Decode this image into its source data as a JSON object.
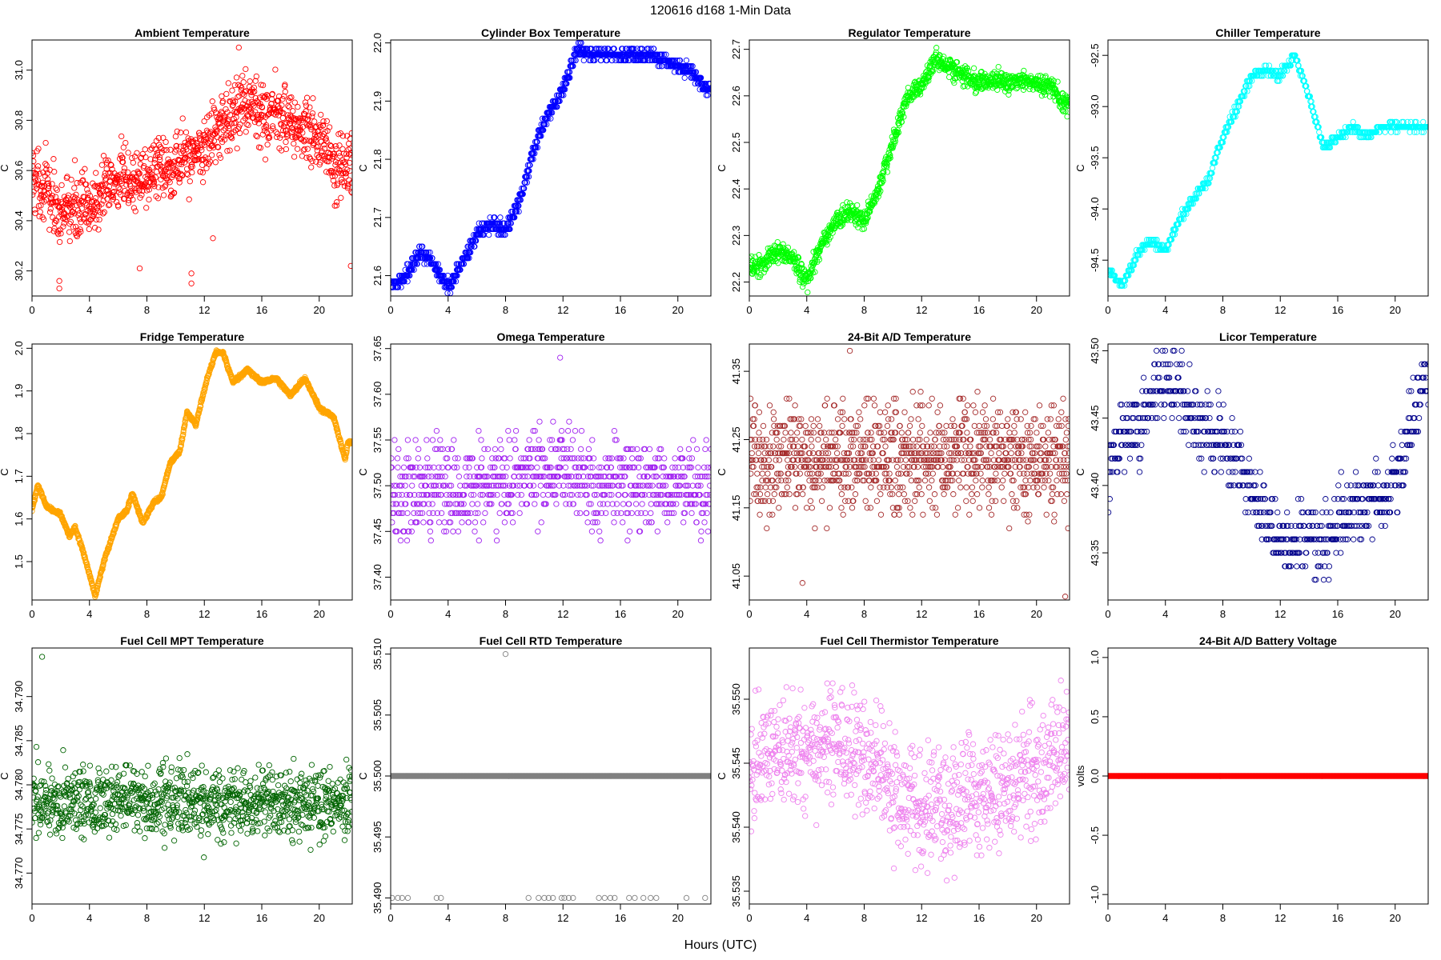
{
  "figure": {
    "title": "120616   d168   1-Min Data",
    "xlabel": "Hours (UTC)"
  },
  "chart_data": [
    {
      "type": "scatter",
      "title": "Ambient Temperature",
      "ylabel": "C",
      "color": "#ff0000",
      "xlim": [
        0,
        22.3
      ],
      "ylim": [
        30.1,
        31.12
      ],
      "xticks": [
        0,
        4,
        8,
        12,
        16,
        20
      ],
      "yticks": [
        30.2,
        30.4,
        30.6,
        30.8,
        31.0
      ],
      "yticklabels": [
        "30.2",
        "30.4",
        "30.6",
        "30.8",
        "31.0"
      ],
      "trend": [
        [
          0,
          30.58
        ],
        [
          1,
          30.52
        ],
        [
          2,
          30.42
        ],
        [
          3,
          30.46
        ],
        [
          4,
          30.45
        ],
        [
          5,
          30.52
        ],
        [
          6,
          30.56
        ],
        [
          7,
          30.55
        ],
        [
          8,
          30.58
        ],
        [
          9,
          30.62
        ],
        [
          10,
          30.63
        ],
        [
          11,
          30.66
        ],
        [
          12,
          30.7
        ],
        [
          13,
          30.76
        ],
        [
          14,
          30.82
        ],
        [
          15,
          30.86
        ],
        [
          16,
          30.83
        ],
        [
          17,
          30.82
        ],
        [
          18,
          30.8
        ],
        [
          19,
          30.75
        ],
        [
          20,
          30.72
        ],
        [
          21,
          30.62
        ],
        [
          22,
          30.6
        ]
      ],
      "noise": 0.09,
      "quant": 0,
      "n": 1100,
      "outliers": [
        [
          1.9,
          30.13
        ],
        [
          1.9,
          30.16
        ],
        [
          14.4,
          31.09
        ],
        [
          11.1,
          30.15
        ],
        [
          11.1,
          30.19
        ],
        [
          22.2,
          30.22
        ],
        [
          7.5,
          30.21
        ],
        [
          12.6,
          30.33
        ]
      ]
    },
    {
      "type": "scatter",
      "title": "Cylinder Box Temperature",
      "ylabel": "C",
      "color": "#0000ff",
      "xlim": [
        0,
        22.3
      ],
      "ylim": [
        21.565,
        22.005
      ],
      "xticks": [
        0,
        4,
        8,
        12,
        16,
        20
      ],
      "yticks": [
        21.6,
        21.7,
        21.8,
        21.9,
        22.0
      ],
      "yticklabels": [
        "21.6",
        "21.7",
        "21.8",
        "21.9",
        "22.0"
      ],
      "trend": [
        [
          0,
          21.58
        ],
        [
          1,
          21.6
        ],
        [
          2,
          21.64
        ],
        [
          3,
          21.62
        ],
        [
          4,
          21.58
        ],
        [
          5,
          21.62
        ],
        [
          6,
          21.67
        ],
        [
          7,
          21.69
        ],
        [
          8,
          21.68
        ],
        [
          9,
          21.73
        ],
        [
          10,
          21.82
        ],
        [
          11,
          21.88
        ],
        [
          12,
          21.92
        ],
        [
          13,
          21.99
        ],
        [
          14,
          21.98
        ],
        [
          16,
          21.98
        ],
        [
          18,
          21.98
        ],
        [
          19,
          21.97
        ],
        [
          20,
          21.96
        ],
        [
          21,
          21.95
        ],
        [
          22,
          21.92
        ]
      ],
      "noise": 0.008,
      "quant": 0.01,
      "n": 1100,
      "outliers": []
    },
    {
      "type": "scatter",
      "title": "Regulator Temperature",
      "ylabel": "C",
      "color": "#00ff00",
      "xlim": [
        0,
        22.3
      ],
      "ylim": [
        22.17,
        22.72
      ],
      "xticks": [
        0,
        4,
        8,
        12,
        16,
        20
      ],
      "yticks": [
        22.2,
        22.3,
        22.4,
        22.5,
        22.6,
        22.7
      ],
      "yticklabels": [
        "22.2",
        "22.3",
        "22.4",
        "22.5",
        "22.6",
        "22.7"
      ],
      "trend": [
        [
          0,
          22.23
        ],
        [
          1,
          22.24
        ],
        [
          2,
          22.27
        ],
        [
          3,
          22.25
        ],
        [
          4,
          22.2
        ],
        [
          5,
          22.28
        ],
        [
          6,
          22.33
        ],
        [
          7,
          22.35
        ],
        [
          8,
          22.33
        ],
        [
          9,
          22.4
        ],
        [
          10,
          22.5
        ],
        [
          11,
          22.6
        ],
        [
          12,
          22.62
        ],
        [
          13,
          22.68
        ],
        [
          14,
          22.66
        ],
        [
          15,
          22.64
        ],
        [
          16,
          22.63
        ],
        [
          18,
          22.63
        ],
        [
          20,
          22.63
        ],
        [
          21,
          22.62
        ],
        [
          22,
          22.58
        ]
      ],
      "noise": 0.015,
      "quant": 0,
      "n": 1100,
      "outliers": []
    },
    {
      "type": "scatter",
      "title": "Chiller Temperature",
      "ylabel": "C",
      "color": "#00ffff",
      "xlim": [
        0,
        22.3
      ],
      "ylim": [
        -94.85,
        -92.35
      ],
      "xticks": [
        0,
        4,
        8,
        12,
        16,
        20
      ],
      "yticks": [
        -94.5,
        -94.0,
        -93.5,
        -93.0,
        -92.5
      ],
      "yticklabels": [
        "-94.5",
        "-94.0",
        "-93.5",
        "-93.0",
        "-92.5"
      ],
      "trend": [
        [
          0,
          -94.6
        ],
        [
          1,
          -94.75
        ],
        [
          2,
          -94.45
        ],
        [
          3,
          -94.3
        ],
        [
          4,
          -94.4
        ],
        [
          5,
          -94.1
        ],
        [
          6,
          -93.9
        ],
        [
          7,
          -93.7
        ],
        [
          8,
          -93.3
        ],
        [
          9,
          -93.0
        ],
        [
          10,
          -92.7
        ],
        [
          11,
          -92.65
        ],
        [
          12,
          -92.7
        ],
        [
          13,
          -92.5
        ],
        [
          14,
          -92.9
        ],
        [
          15,
          -93.4
        ],
        [
          16,
          -93.3
        ],
        [
          17,
          -93.2
        ],
        [
          18,
          -93.3
        ],
        [
          19,
          -93.2
        ],
        [
          20,
          -93.2
        ],
        [
          22,
          -93.2
        ]
      ],
      "noise": 0.03,
      "quant": 0.05,
      "n": 700,
      "outliers": []
    },
    {
      "type": "scatter",
      "title": "Fridge Temperature",
      "ylabel": "C",
      "color": "#ffa500",
      "xlim": [
        0,
        22.3
      ],
      "ylim": [
        1.41,
        2.01
      ],
      "xticks": [
        0,
        4,
        8,
        12,
        16,
        20
      ],
      "yticks": [
        1.5,
        1.6,
        1.7,
        1.8,
        1.9,
        2.0
      ],
      "yticklabels": [
        "1.5",
        "1.6",
        "1.7",
        "1.8",
        "1.9",
        "2.0"
      ],
      "trend": [
        [
          0,
          1.62
        ],
        [
          0.4,
          1.68
        ],
        [
          1,
          1.63
        ],
        [
          2,
          1.61
        ],
        [
          2.6,
          1.56
        ],
        [
          3,
          1.58
        ],
        [
          3.5,
          1.53
        ],
        [
          4,
          1.47
        ],
        [
          4.4,
          1.42
        ],
        [
          5,
          1.5
        ],
        [
          6,
          1.6
        ],
        [
          6.6,
          1.62
        ],
        [
          7,
          1.66
        ],
        [
          7.7,
          1.59
        ],
        [
          8.5,
          1.64
        ],
        [
          9,
          1.65
        ],
        [
          9.6,
          1.73
        ],
        [
          10.3,
          1.76
        ],
        [
          10.8,
          1.85
        ],
        [
          11.4,
          1.82
        ],
        [
          12.2,
          1.93
        ],
        [
          12.8,
          1.99
        ],
        [
          13.3,
          1.99
        ],
        [
          14,
          1.92
        ],
        [
          15,
          1.95
        ],
        [
          16,
          1.92
        ],
        [
          17,
          1.93
        ],
        [
          18,
          1.89
        ],
        [
          19,
          1.93
        ],
        [
          20,
          1.86
        ],
        [
          21,
          1.84
        ],
        [
          21.8,
          1.74
        ],
        [
          22,
          1.78
        ]
      ],
      "noise": 0.003,
      "quant": 0,
      "n": 1300,
      "outliers": []
    },
    {
      "type": "scatter",
      "title": "Omega Temperature",
      "ylabel": "C",
      "color": "#a020f0",
      "xlim": [
        0,
        22.3
      ],
      "ylim": [
        37.375,
        37.655
      ],
      "xticks": [
        0,
        4,
        8,
        12,
        16,
        20
      ],
      "yticks": [
        37.4,
        37.45,
        37.5,
        37.55,
        37.6,
        37.65
      ],
      "yticklabels": [
        "37.40",
        "37.45",
        "37.50",
        "37.55",
        "37.60",
        "37.65"
      ],
      "trend": [
        [
          0,
          37.49
        ],
        [
          4,
          37.5
        ],
        [
          8,
          37.5
        ],
        [
          10,
          37.51
        ],
        [
          12,
          37.52
        ],
        [
          14,
          37.5
        ],
        [
          16,
          37.5
        ],
        [
          20,
          37.5
        ],
        [
          22,
          37.5
        ]
      ],
      "noise": 0.035,
      "quant": 0.01,
      "n": 900,
      "outliers": [
        [
          11.8,
          37.64
        ]
      ]
    },
    {
      "type": "scatter",
      "title": "24-Bit A/D Temperature",
      "ylabel": "C",
      "color": "#a52a2a",
      "xlim": [
        0,
        22.3
      ],
      "ylim": [
        41.015,
        41.39
      ],
      "xticks": [
        0,
        4,
        8,
        12,
        16,
        20
      ],
      "yticks": [
        41.05,
        41.15,
        41.25,
        41.35
      ],
      "yticklabels": [
        "41.05",
        "41.15",
        "41.25",
        "41.35"
      ],
      "trend": [
        [
          0,
          41.22
        ],
        [
          4,
          41.22
        ],
        [
          8,
          41.23
        ],
        [
          12,
          41.22
        ],
        [
          16,
          41.23
        ],
        [
          20,
          41.22
        ],
        [
          22,
          41.22
        ]
      ],
      "noise": 0.055,
      "quant": 0.01,
      "n": 1100,
      "outliers": [
        [
          22,
          41.02
        ],
        [
          3.7,
          41.04
        ],
        [
          7,
          41.38
        ]
      ]
    },
    {
      "type": "scatter",
      "title": "Licor Temperature",
      "ylabel": "C",
      "color": "#00008b",
      "xlim": [
        0,
        22.3
      ],
      "ylim": [
        43.315,
        43.505
      ],
      "xticks": [
        0,
        4,
        8,
        12,
        16,
        20
      ],
      "yticks": [
        43.35,
        43.4,
        43.45,
        43.5
      ],
      "yticklabels": [
        "43.35",
        "43.40",
        "43.45",
        "43.50"
      ],
      "trend": [
        [
          0,
          43.4
        ],
        [
          1,
          43.44
        ],
        [
          2,
          43.44
        ],
        [
          3,
          43.47
        ],
        [
          4,
          43.48
        ],
        [
          5,
          43.47
        ],
        [
          6,
          43.45
        ],
        [
          7,
          43.44
        ],
        [
          8,
          43.43
        ],
        [
          9,
          43.42
        ],
        [
          10,
          43.4
        ],
        [
          11,
          43.37
        ],
        [
          12,
          43.36
        ],
        [
          13,
          43.36
        ],
        [
          14,
          43.36
        ],
        [
          15,
          43.36
        ],
        [
          16,
          43.37
        ],
        [
          17,
          43.38
        ],
        [
          18,
          43.39
        ],
        [
          19,
          43.39
        ],
        [
          20,
          43.4
        ],
        [
          21,
          43.44
        ],
        [
          22,
          43.48
        ]
      ],
      "noise": 0.018,
      "quant": 0.01,
      "n": 700,
      "outliers": []
    },
    {
      "type": "scatter",
      "title": "Fuel Cell MPT Temperature",
      "ylabel": "C",
      "color": "#006400",
      "xlim": [
        0,
        22.3
      ],
      "ylim": [
        34.7665,
        34.7955
      ],
      "xticks": [
        0,
        4,
        8,
        12,
        16,
        20
      ],
      "yticks": [
        34.77,
        34.775,
        34.78,
        34.785,
        34.79
      ],
      "yticklabels": [
        "34.770",
        "34.775",
        "34.780",
        "34.785",
        "34.790"
      ],
      "trend": [
        [
          0,
          34.778
        ],
        [
          22,
          34.778
        ]
      ],
      "noise": 0.0028,
      "quant": 0,
      "n": 1100,
      "outliers": [
        [
          0.7,
          34.7945
        ]
      ]
    },
    {
      "type": "scatter",
      "title": "Fuel Cell RTD Temperature",
      "ylabel": "C",
      "color": "#808080",
      "xlim": [
        0,
        22.3
      ],
      "ylim": [
        35.4895,
        35.5105
      ],
      "xticks": [
        0,
        4,
        8,
        12,
        16,
        20
      ],
      "yticks": [
        35.49,
        35.495,
        35.5,
        35.505,
        35.51
      ],
      "yticklabels": [
        "35.490",
        "35.495",
        "35.500",
        "35.505",
        "35.510"
      ],
      "trend": [
        [
          0,
          35.5
        ],
        [
          22,
          35.5
        ]
      ],
      "noise": 0,
      "quant": 0,
      "n": 1300,
      "outliers": [
        [
          0.1,
          35.49
        ],
        [
          0.5,
          35.49
        ],
        [
          0.8,
          35.49
        ],
        [
          1.2,
          35.49
        ],
        [
          3.2,
          35.49
        ],
        [
          3.5,
          35.49
        ],
        [
          8,
          35.51
        ],
        [
          9.6,
          35.49
        ],
        [
          10.3,
          35.49
        ],
        [
          10.7,
          35.49
        ],
        [
          11.0,
          35.49
        ],
        [
          11.3,
          35.49
        ],
        [
          11.9,
          35.49
        ],
        [
          12.1,
          35.49
        ],
        [
          12.4,
          35.49
        ],
        [
          12.7,
          35.49
        ],
        [
          14.5,
          35.49
        ],
        [
          14.9,
          35.49
        ],
        [
          15.3,
          35.49
        ],
        [
          15.6,
          35.49
        ],
        [
          16.6,
          35.49
        ],
        [
          17.0,
          35.49
        ],
        [
          17.6,
          35.49
        ],
        [
          18.1,
          35.49
        ],
        [
          18.5,
          35.49
        ],
        [
          20.6,
          35.49
        ],
        [
          21.9,
          35.49
        ]
      ]
    },
    {
      "type": "scatter",
      "title": "Fuel Cell Thermistor Temperature",
      "ylabel": "C",
      "color": "#ee82ee",
      "xlim": [
        0,
        22.3
      ],
      "ylim": [
        35.534,
        35.554
      ],
      "xticks": [
        0,
        4,
        8,
        12,
        16,
        20
      ],
      "yticks": [
        35.535,
        35.54,
        35.545,
        35.55
      ],
      "yticklabels": [
        "35.535",
        "35.540",
        "35.545",
        "35.550"
      ],
      "trend": [
        [
          0,
          35.545
        ],
        [
          2,
          35.546
        ],
        [
          4,
          35.547
        ],
        [
          6,
          35.547
        ],
        [
          8,
          35.546
        ],
        [
          10,
          35.543
        ],
        [
          12,
          35.541
        ],
        [
          14,
          35.542
        ],
        [
          16,
          35.542
        ],
        [
          18,
          35.543
        ],
        [
          20,
          35.544
        ],
        [
          22,
          35.547
        ]
      ],
      "noise": 0.0032,
      "quant": 0,
      "n": 1000,
      "outliers": []
    },
    {
      "type": "scatter",
      "title": "24-Bit A/D Battery Voltage",
      "ylabel": "volts",
      "color": "#ff0000",
      "xlim": [
        0,
        22.3
      ],
      "ylim": [
        -1.08,
        1.08
      ],
      "xticks": [
        0,
        4,
        8,
        12,
        16,
        20
      ],
      "yticks": [
        -1.0,
        -0.5,
        0.0,
        0.5,
        1.0
      ],
      "yticklabels": [
        "-1.0",
        "-0.5",
        "0.0",
        "0.5",
        "1.0"
      ],
      "trend": [
        [
          0,
          0
        ],
        [
          22.3,
          0
        ]
      ],
      "noise": 0,
      "quant": 0,
      "n": 1300,
      "outliers": []
    }
  ]
}
